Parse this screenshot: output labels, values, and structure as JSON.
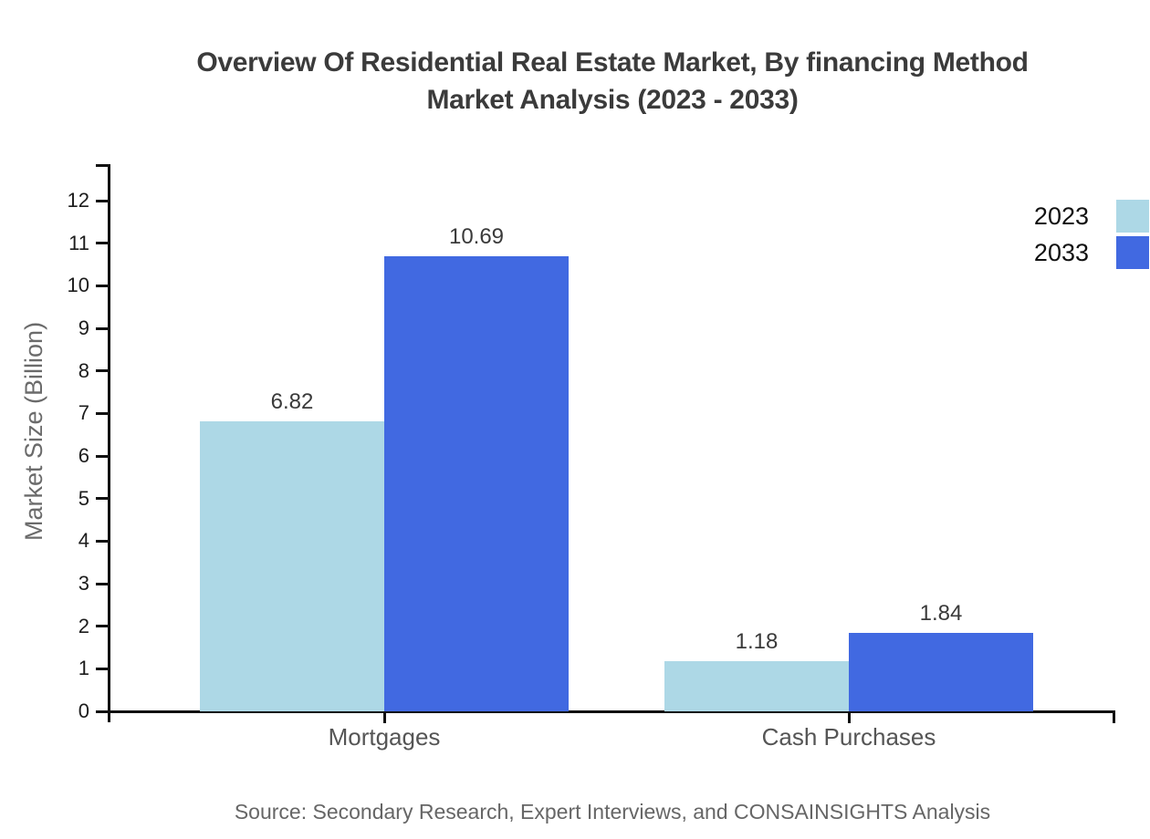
{
  "chart_data": {
    "type": "bar",
    "title": "Overview Of Residential Real Estate Market, By financing Method Market Analysis (2023 - 2033)",
    "title_line1": "Overview Of Residential Real Estate Market, By financing Method",
    "title_line2": "Market Analysis (2023 - 2033)",
    "categories": [
      "Mortgages",
      "Cash Purchases"
    ],
    "series": [
      {
        "name": "2023",
        "color": "#ADD8E6",
        "values": [
          6.82,
          1.18
        ]
      },
      {
        "name": "2033",
        "color": "#4169E1",
        "values": [
          10.69,
          1.84
        ]
      }
    ],
    "xlabel": "",
    "ylabel": "Market Size (Billion)",
    "ylim": [
      0,
      12
    ],
    "ytick_step": 1,
    "grid": false,
    "legend_position": "top-right",
    "value_labels_shown": true,
    "source": "Source: Secondary Research, Expert Interviews, and CONSAINSIGHTS Analysis"
  },
  "colors": {
    "axis": "#111111",
    "tick_label": "#1c1c1c",
    "title": "#3b3b3b",
    "category_label": "#555555",
    "value_label": "#3a3a3a",
    "muted_text": "#666666"
  }
}
